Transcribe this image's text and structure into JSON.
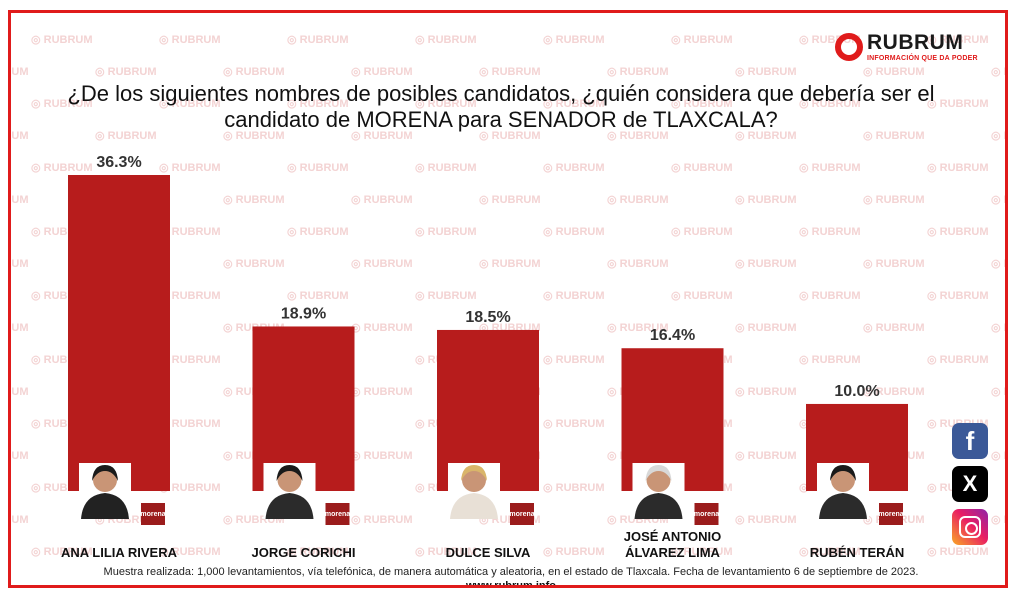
{
  "brand": {
    "name": "RUBRUM",
    "tagline": "INFORMACIÓN QUE DA PODER",
    "watermark": "RUBRUM",
    "website": "www.rubrum.info"
  },
  "footnote": "Muestra realizada: 1,000 levantamientos, vía telefónica, de manera automática y aleatoria, en el estado de Tlaxcala. Fecha de levantamiento 6 de septiembre de 2023.",
  "party_badge": "morena",
  "colors": {
    "bar": "#b71c1c",
    "frame": "#e01b1b",
    "facebook": "#3b5998",
    "x": "#000000"
  },
  "social": [
    {
      "name": "facebook-icon",
      "glyph": "f"
    },
    {
      "name": "x-icon",
      "glyph": "X"
    },
    {
      "name": "instagram-icon",
      "glyph": ""
    }
  ],
  "chart_data": {
    "type": "bar",
    "title": "¿De los siguientes nombres de posibles candidatos, ¿quién considera que debería ser el candidato de MORENA para SENADOR de TLAXCALA?",
    "categories": [
      "ANA LILIA RIVERA",
      "JORGE CORICHI",
      "DULCE SILVA",
      "JOSÉ ANTONIO ÁLVAREZ LIMA",
      "RUBÉN TERÁN"
    ],
    "category_lines": [
      [
        "ANA LILIA RIVERA"
      ],
      [
        "JORGE CORICHI"
      ],
      [
        "DULCE SILVA"
      ],
      [
        "JOSÉ ANTONIO",
        "ÁLVAREZ LIMA"
      ],
      [
        "RUBÉN TERÁN"
      ]
    ],
    "values": [
      36.3,
      18.9,
      18.5,
      16.4,
      10.0
    ],
    "value_labels": [
      "36.3%",
      "18.9%",
      "18.5%",
      "16.4%",
      "10.0%"
    ],
    "unit": "%",
    "xlabel": "",
    "ylabel": "",
    "ylim": [
      0,
      36.3
    ],
    "grid": false,
    "legend": "none"
  }
}
